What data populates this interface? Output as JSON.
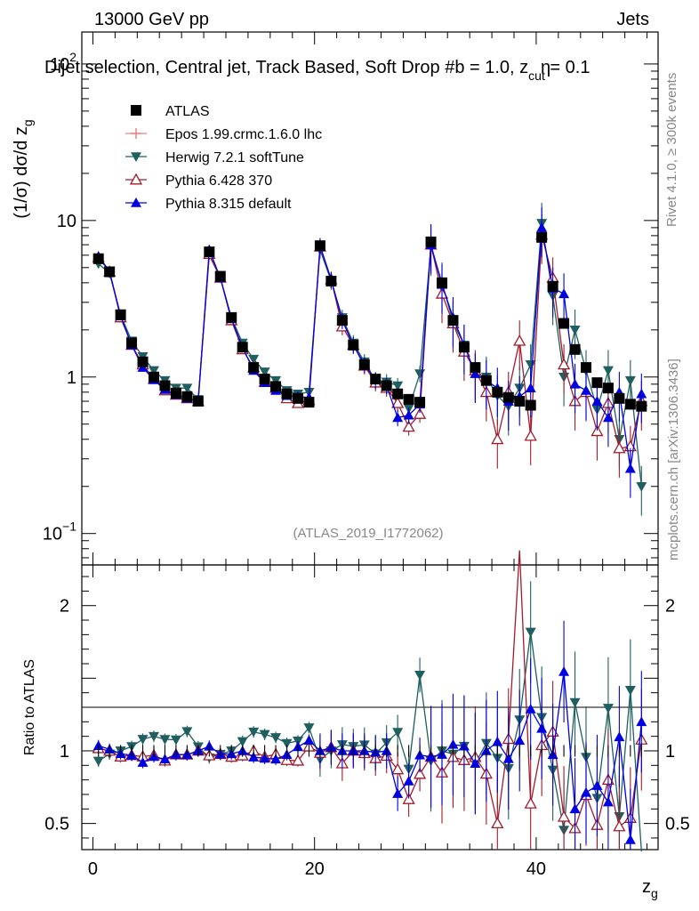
{
  "header": {
    "energy": "13000 GeV pp",
    "category": "Jets"
  },
  "chart_data": {
    "type": "scatter",
    "title": "Dijet selection, Central jet, Track Based, Soft Drop #b = 1.0, z_cut = 0.1",
    "title_main": "Dijet selection, Central jet, Track Based, Soft Drop #b",
    "title_suffix": " = 1.0, z",
    "title_sub": "cut",
    "title_end": " = 0.1",
    "title_overlap_glyph": "η",
    "xlabel": "z",
    "xlabel_sub": "g",
    "ylabel_main": "(1/σ) dσ/d z",
    "ylabel_sub": "g",
    "ratio_ylabel": "Ratio to ATLAS",
    "watermark": "(ATLAS_2019_I1772062)",
    "side_label_1": "Rivet 4.1.0, ≥ 300k events",
    "side_label_2": "mcplots.cern.ch [arXiv:1306.3436]",
    "xlim": [
      -1,
      51
    ],
    "ylim_log": [
      0.063,
      160
    ],
    "ratio_ylim": [
      0.32,
      2.28
    ],
    "x_ticks": [
      0,
      20,
      40
    ],
    "y_tick_labels": [
      {
        "value": 0.1,
        "base": "10",
        "exp": "−1"
      },
      {
        "value": 1,
        "base": "1",
        "exp": ""
      },
      {
        "value": 10,
        "base": "10",
        "exp": ""
      },
      {
        "value": 100,
        "base": "10",
        "exp": "2"
      }
    ],
    "ratio_ticks": [
      0.5,
      1,
      2
    ],
    "x": [
      0.5,
      1.5,
      2.5,
      3.5,
      4.5,
      5.5,
      6.5,
      7.5,
      8.5,
      9.5,
      10.5,
      11.5,
      12.5,
      13.5,
      14.5,
      15.5,
      16.5,
      17.5,
      18.5,
      19.5,
      20.5,
      21.5,
      22.5,
      23.5,
      24.5,
      25.5,
      26.5,
      27.5,
      28.5,
      29.5,
      30.5,
      31.5,
      32.5,
      33.5,
      34.5,
      35.5,
      36.5,
      37.5,
      38.5,
      39.5,
      40.5,
      41.5,
      42.5,
      43.5,
      44.5,
      45.5,
      46.5,
      47.5,
      48.5,
      49.5
    ],
    "series": [
      {
        "name": "ATLAS",
        "marker": "square",
        "color": "#000000",
        "values": [
          5.7,
          4.7,
          2.5,
          1.65,
          1.25,
          1.0,
          0.88,
          0.79,
          0.75,
          0.7,
          6.3,
          4.4,
          2.4,
          1.55,
          1.15,
          0.97,
          0.87,
          0.78,
          0.73,
          0.69,
          6.9,
          4.1,
          2.3,
          1.6,
          1.2,
          0.97,
          0.88,
          0.78,
          0.72,
          0.69,
          7.3,
          4.0,
          2.3,
          1.55,
          1.15,
          0.95,
          0.8,
          0.74,
          0.7,
          0.66,
          7.8,
          3.8,
          2.2,
          1.5,
          1.15,
          0.92,
          0.85,
          0.73,
          0.67,
          0.65
        ]
      },
      {
        "name": "Epos 1.99.crmc.1.6.0 lhc",
        "marker": "cross",
        "color": "#f08080",
        "values": []
      },
      {
        "name": "Herwig 7.2.1 softTune",
        "marker": "triangle-down",
        "color": "#1f5f5f",
        "values": [
          5.3,
          4.6,
          2.5,
          1.7,
          1.35,
          1.1,
          0.95,
          0.85,
          0.85,
          0.72,
          6.0,
          4.3,
          2.4,
          1.65,
          1.3,
          1.08,
          0.95,
          0.82,
          0.78,
          0.8,
          6.5,
          4.1,
          2.4,
          1.65,
          1.25,
          0.95,
          0.93,
          0.88,
          0.63,
          1.05,
          6.8,
          4.0,
          2.25,
          1.6,
          1.05,
          1.0,
          0.76,
          0.65,
          0.85,
          1.2,
          9.6,
          3.3,
          1.0,
          2.0,
          1.1,
          0.62,
          1.1,
          0.4,
          0.95,
          0.2
        ]
      },
      {
        "name": "Pythia 6.428 370",
        "marker": "triangle-up-open",
        "color": "#a01c2c",
        "values": [
          5.8,
          4.7,
          2.4,
          1.6,
          1.2,
          0.97,
          0.82,
          0.77,
          0.73,
          0.7,
          6.1,
          4.3,
          2.3,
          1.5,
          1.15,
          0.93,
          0.85,
          0.73,
          0.68,
          0.71,
          6.8,
          4.2,
          2.1,
          1.6,
          1.18,
          0.92,
          0.85,
          0.68,
          0.48,
          0.58,
          7.0,
          3.4,
          2.2,
          1.45,
          1.1,
          0.8,
          0.4,
          0.8,
          1.7,
          0.42,
          8.1,
          4.3,
          1.2,
          0.7,
          0.8,
          0.45,
          0.68,
          0.35,
          0.36,
          0.7
        ]
      },
      {
        "name": "Pythia 8.315 default",
        "marker": "triangle-up",
        "color": "#0000e0",
        "values": [
          5.9,
          4.75,
          2.45,
          1.6,
          1.15,
          0.96,
          0.83,
          0.77,
          0.73,
          0.7,
          6.5,
          4.3,
          2.35,
          1.55,
          1.1,
          0.92,
          0.82,
          0.76,
          0.75,
          0.74,
          6.9,
          4.2,
          2.3,
          1.6,
          1.2,
          0.96,
          0.88,
          0.55,
          0.57,
          0.67,
          7.0,
          3.9,
          2.4,
          1.6,
          1.05,
          0.95,
          0.85,
          0.7,
          0.75,
          0.85,
          9.0,
          3.7,
          3.4,
          0.9,
          0.82,
          0.7,
          0.55,
          0.8,
          0.26,
          0.78
        ]
      }
    ],
    "legend_position": "top-left"
  }
}
